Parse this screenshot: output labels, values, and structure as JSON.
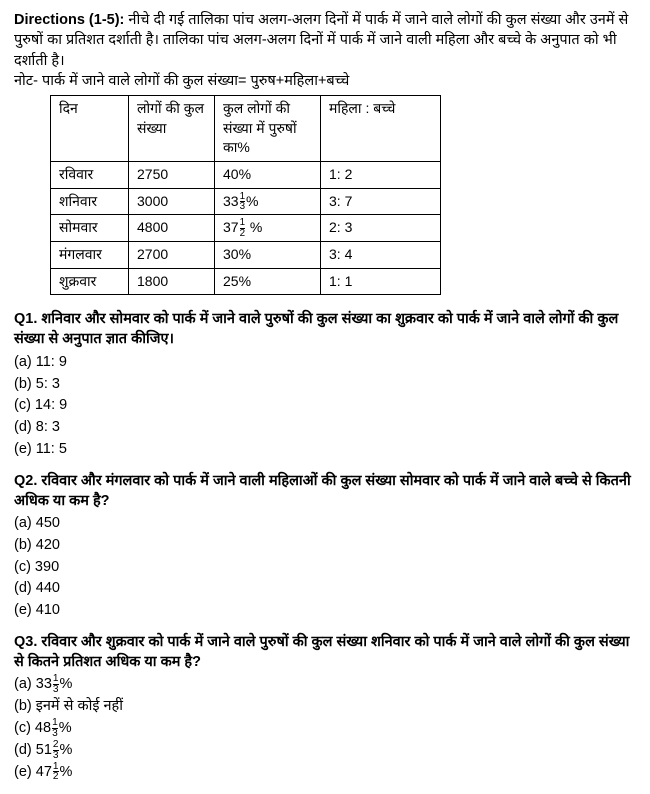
{
  "intro": {
    "label": "Directions (1-5):",
    "text1": " नीचे दी गई तालिका पांच अलग-अलग दिनों में पार्क में जाने वाले लोगों की कुल संख्या और उनमें से पुरुषों का प्रतिशत दर्शाती है। तालिका पांच अलग-अलग दिनों में पार्क में जाने वाली महिला और बच्चे के अनुपात को भी दर्शाती है।",
    "note": "नोट- पार्क में जाने वाले लोगों की कुल संख्या= पुरुष+महिला+बच्चे"
  },
  "table": {
    "headers": {
      "day": "दिन",
      "total": "लोगों की कुल संख्या",
      "pct": "कुल लोगों की संख्या में पुरुषों का%",
      "ratio": "महिला : बच्चे"
    },
    "rows": [
      {
        "day": "रविवार",
        "total": "2750",
        "pct_plain": "40%",
        "ratio": "1: 2"
      },
      {
        "day": "शनिवार",
        "total": "3000",
        "pct_pre": "33",
        "pct_n": "1",
        "pct_d": "3",
        "pct_post": "%",
        "ratio": "3: 7"
      },
      {
        "day": "सोमवार",
        "total": "4800",
        "pct_pre": "37",
        "pct_n": "1",
        "pct_d": "2",
        "pct_post": " %",
        "ratio": "2: 3"
      },
      {
        "day": "मंगलवार",
        "total": "2700",
        "pct_plain": "30%",
        "ratio": "3: 4"
      },
      {
        "day": "शुक्रवार",
        "total": "1800",
        "pct_plain": "25%",
        "ratio": "1: 1"
      }
    ]
  },
  "q1": {
    "label": "Q1.",
    "text": " शनिवार और सोमवार को पार्क में जाने वाले पुरुषों की कुल संख्या का शुक्रवार को पार्क में जाने वाले लोगों की कुल संख्या से अनुपात ज्ञात कीजिए।",
    "opts": {
      "a": "(a) 11: 9",
      "b": "(b) 5: 3",
      "c": "(c) 14: 9",
      "d": "(d) 8: 3",
      "e": "(e) 11: 5"
    }
  },
  "q2": {
    "label": "Q2.",
    "text": " रविवार और मंगलवार को पार्क में जाने वाली महिलाओं की कुल संख्या सोमवार को पार्क में जाने वाले बच्चे से कितनी अधिक या कम है?",
    "opts": {
      "a": "(a) 450",
      "b": "(b) 420",
      "c": "(c) 390",
      "d": "(d) 440",
      "e": "(e) 410"
    }
  },
  "q3": {
    "label": "Q3.",
    "text": " रविवार और शुक्रवार को पार्क में जाने वाले पुरुषों की कुल संख्या शनिवार को पार्क में जाने वाले लोगों की कुल संख्या से कितने प्रतिशत अधिक या कम है?",
    "opts": {
      "a": {
        "pre": "(a) 33",
        "n": "1",
        "d": "3",
        "post": "%"
      },
      "b": {
        "plain": "(b) इनमें से कोई नहीं"
      },
      "c": {
        "pre": "(c) 48",
        "n": "1",
        "d": "3",
        "post": "%"
      },
      "d": {
        "pre": "(d) 51",
        "n": "2",
        "d": "3",
        "post": "%"
      },
      "e": {
        "pre": "(e) 47",
        "n": "1",
        "d": "2",
        "post": "%"
      }
    }
  }
}
